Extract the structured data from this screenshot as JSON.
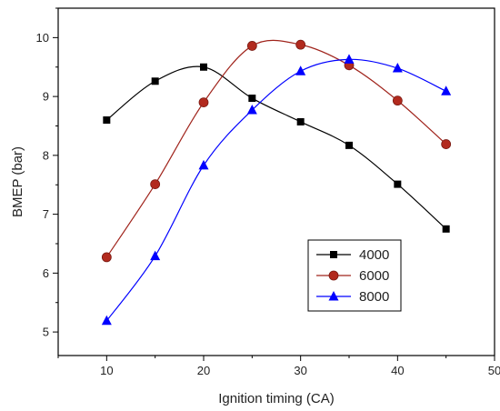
{
  "chart_data": {
    "type": "line",
    "title": "",
    "xlabel": "Ignition timing (CA)",
    "ylabel": "BMEP (bar)",
    "xlim": [
      5,
      50
    ],
    "ylim": [
      4.6,
      10.5
    ],
    "xticks": [
      10,
      20,
      30,
      40,
      50
    ],
    "yticks": [
      5,
      6,
      7,
      8,
      9,
      10
    ],
    "grid": false,
    "legend_position": "bottom-right",
    "x": [
      10,
      15,
      20,
      25,
      30,
      35,
      40,
      45
    ],
    "series": [
      {
        "name": "4000",
        "marker": "square",
        "line_color": "#000000",
        "marker_color": "#000000",
        "values": [
          8.6,
          9.26,
          9.5,
          8.97,
          8.57,
          8.17,
          7.51,
          6.75
        ]
      },
      {
        "name": "6000",
        "marker": "circle",
        "line_color": "#a0241c",
        "marker_color": "#b22a1e",
        "values": [
          6.27,
          7.51,
          8.9,
          9.86,
          9.88,
          9.53,
          8.93,
          8.19
        ]
      },
      {
        "name": "8000",
        "marker": "triangle",
        "line_color": "#0000ff",
        "marker_color": "#0000ff",
        "values": [
          5.19,
          6.29,
          7.83,
          8.77,
          9.43,
          9.63,
          9.48,
          9.09
        ]
      }
    ]
  }
}
